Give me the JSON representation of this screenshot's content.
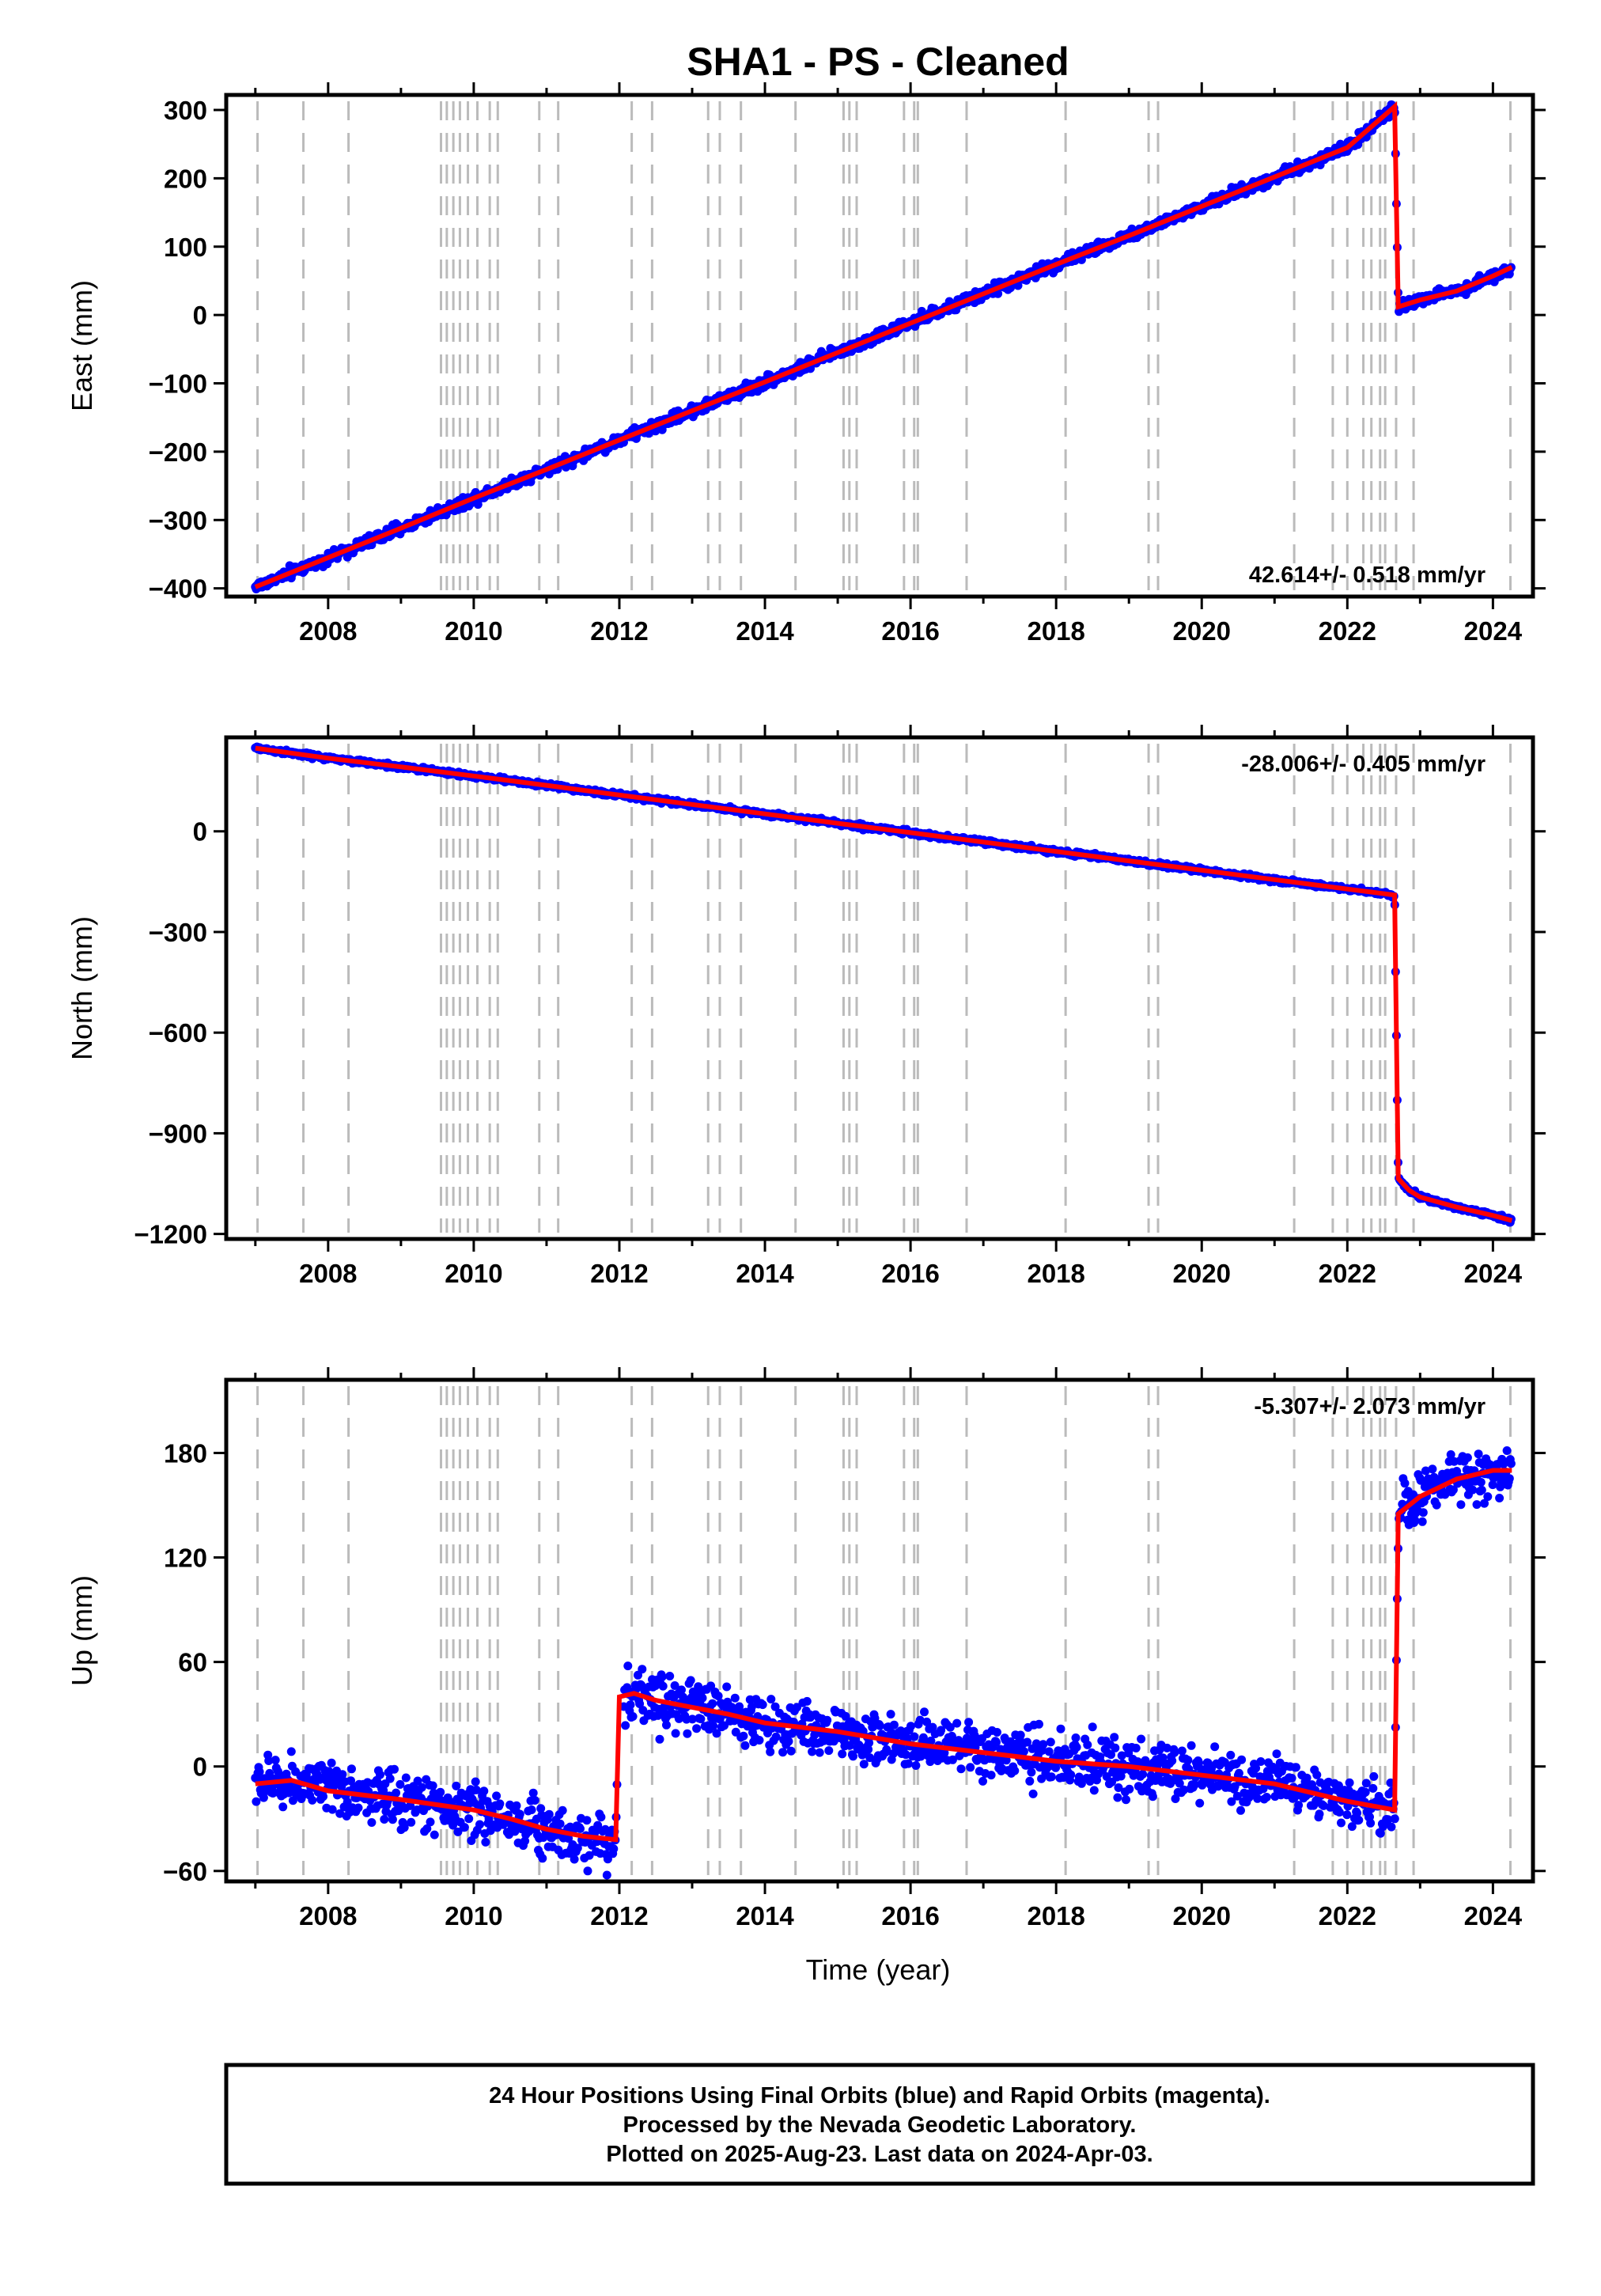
{
  "title": "SHA1  - PS - Cleaned",
  "colors": {
    "daily": "#0000ff",
    "model": "#ff0000",
    "event_line": "#bbbbbb",
    "frame": "#000000"
  },
  "xlabel": "Time (year)",
  "footer": {
    "lines": [
      "24 Hour Positions Using Final Orbits (blue) and Rapid Orbits (magenta).",
      "Processed by the Nevada Geodetic Laboratory.",
      "Plotted on 2025-Aug-23. Last data on 2024-Apr-03."
    ]
  },
  "chart_data": [
    {
      "type": "scatter",
      "ylabel": "East (mm)",
      "rate_label": "42.614+/- 0.518 mm/yr",
      "rate_position": "bottom-right",
      "xlim": [
        2006.6,
        2024.55
      ],
      "ylim": [
        -412,
        322
      ],
      "xticks": [
        "2008",
        "2010",
        "2012",
        "2014",
        "2016",
        "2018",
        "2020",
        "2022",
        "2024"
      ],
      "yticks": [
        "−400",
        "−300",
        "−200",
        "−100",
        "0",
        "100",
        "200",
        "300"
      ],
      "ytick_values": [
        -400,
        -300,
        -200,
        -100,
        0,
        100,
        200,
        300
      ],
      "series": [
        {
          "name": "Final Orbits (blue)",
          "x": [
            2007.0,
            2008.0,
            2009.0,
            2010.0,
            2011.0,
            2012.0,
            2013.0,
            2014.0,
            2015.0,
            2016.0,
            2017.0,
            2018.0,
            2019.0,
            2020.0,
            2021.0,
            2022.0,
            2022.65,
            2022.7,
            2023.0,
            2023.5,
            2024.0,
            2024.26
          ],
          "y": [
            -398,
            -355,
            -312,
            -268,
            -226,
            -183,
            -140,
            -98,
            -55,
            -12,
            31,
            74,
            116,
            159,
            202,
            245,
            305,
            12,
            22,
            35,
            57,
            70
          ],
          "noise": 6
        }
      ]
    },
    {
      "type": "scatter",
      "ylabel": "North (mm)",
      "rate_label": "-28.006+/- 0.405 mm/yr",
      "rate_position": "top-right",
      "xlim": [
        2006.6,
        2024.55
      ],
      "ylim": [
        -1215,
        280
      ],
      "xticks": [
        "2008",
        "2010",
        "2012",
        "2014",
        "2016",
        "2018",
        "2020",
        "2022",
        "2024"
      ],
      "yticks": [
        "−1200",
        "−900",
        "−600",
        "−300",
        "0"
      ],
      "ytick_values": [
        -1200,
        -900,
        -600,
        -300,
        0
      ],
      "series": [
        {
          "name": "Final Orbits (blue)",
          "x": [
            2007.0,
            2008.0,
            2009.0,
            2010.0,
            2011.0,
            2012.0,
            2013.0,
            2014.0,
            2015.0,
            2016.0,
            2017.0,
            2018.0,
            2019.0,
            2020.0,
            2021.0,
            2022.0,
            2022.65,
            2022.7,
            2022.85,
            2023.0,
            2023.5,
            2024.0,
            2024.26
          ],
          "y": [
            248,
            218,
            192,
            165,
            137,
            108,
            80,
            52,
            24,
            -4,
            -32,
            -60,
            -88,
            -116,
            -144,
            -172,
            -190,
            -1035,
            -1070,
            -1090,
            -1120,
            -1145,
            -1160
          ],
          "noise": 5
        }
      ]
    },
    {
      "type": "scatter",
      "ylabel": "Up (mm)",
      "rate_label": "-5.307+/- 2.073 mm/yr",
      "rate_position": "top-right",
      "xlim": [
        2006.6,
        2024.55
      ],
      "ylim": [
        -66,
        222
      ],
      "xticks": [
        "2008",
        "2010",
        "2012",
        "2014",
        "2016",
        "2018",
        "2020",
        "2022",
        "2024"
      ],
      "yticks": [
        "−60",
        "0",
        "60",
        "120",
        "180"
      ],
      "ytick_values": [
        -60,
        0,
        60,
        120,
        180
      ],
      "series": [
        {
          "name": "Final Orbits (blue)",
          "x": [
            2007.0,
            2007.5,
            2008.0,
            2009.0,
            2010.0,
            2010.5,
            2011.0,
            2011.5,
            2011.95,
            2012.0,
            2012.2,
            2012.5,
            2013.0,
            2013.5,
            2014.0,
            2015.0,
            2016.0,
            2017.0,
            2018.0,
            2019.0,
            2020.0,
            2021.0,
            2022.0,
            2022.65,
            2022.7,
            2023.0,
            2023.5,
            2024.0,
            2024.26
          ],
          "y": [
            -10,
            -8,
            -14,
            -19,
            -25,
            -30,
            -36,
            -40,
            -42,
            40,
            42,
            38,
            34,
            30,
            25,
            20,
            13,
            8,
            3,
            0,
            -5,
            -10,
            -20,
            -25,
            145,
            155,
            165,
            170,
            170
          ],
          "noise": 11
        }
      ]
    }
  ]
}
